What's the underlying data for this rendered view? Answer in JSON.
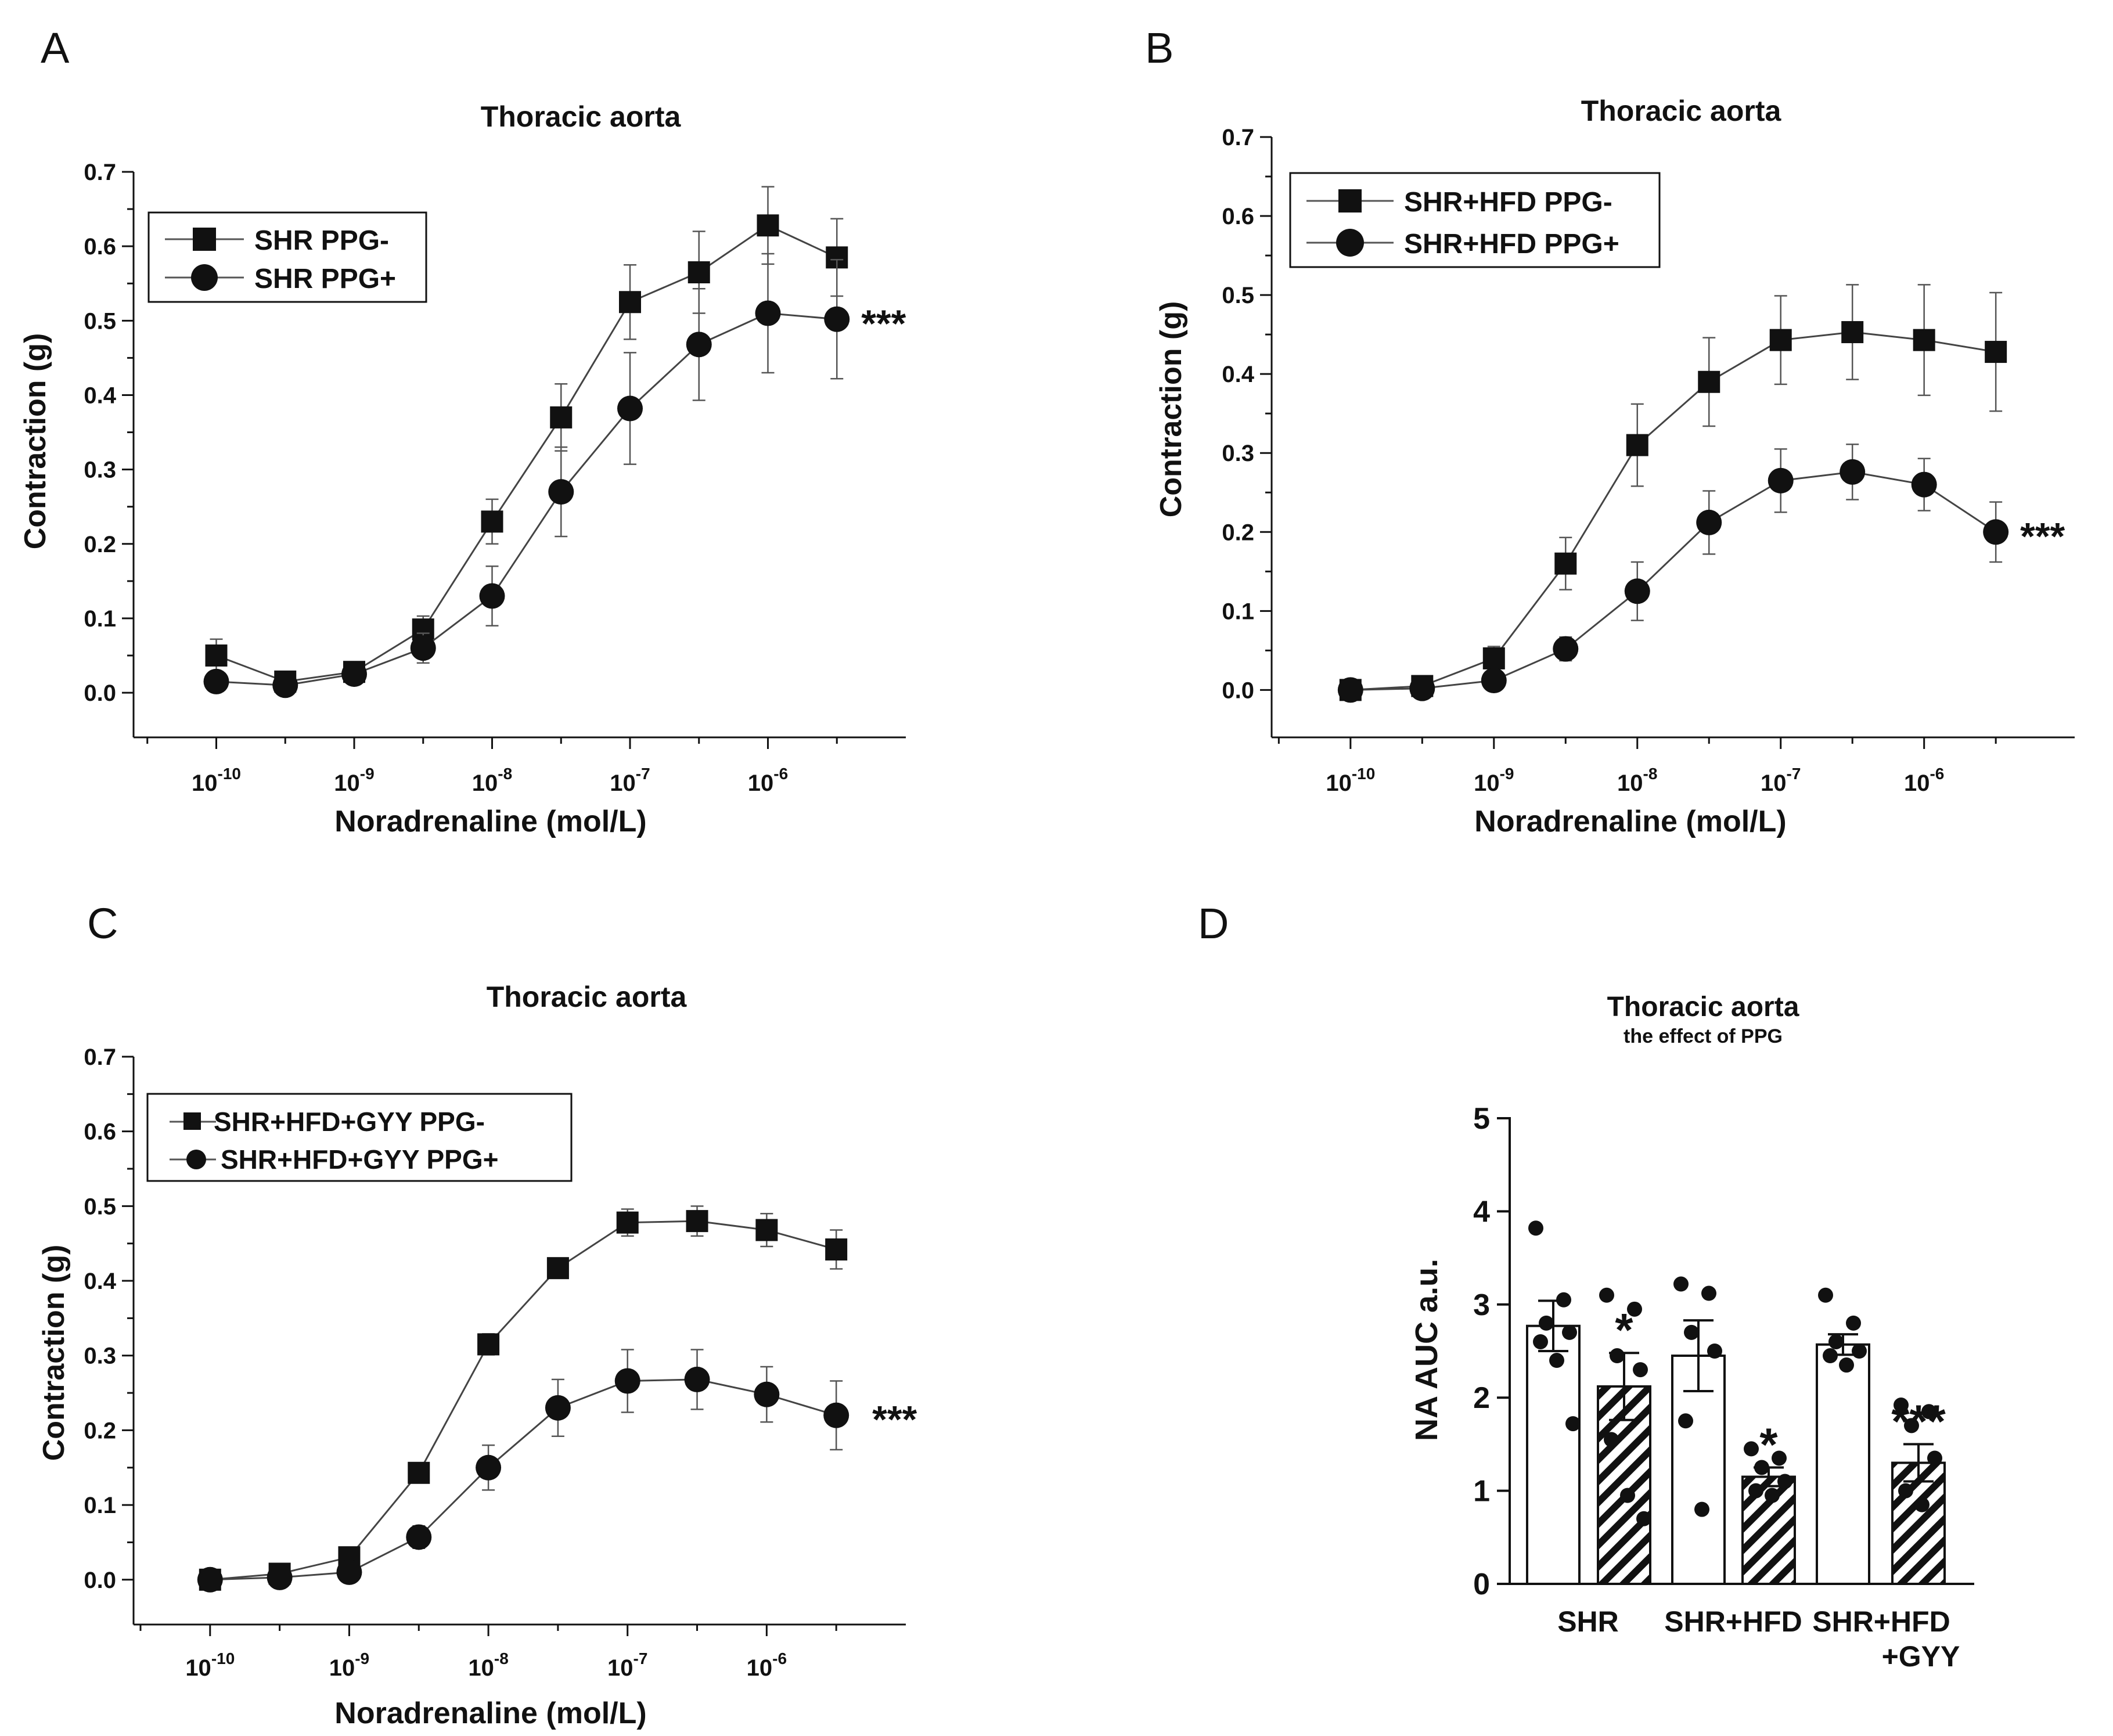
{
  "figure": {
    "panels": [
      {
        "letter": "A",
        "chart_data": {
          "type": "line",
          "title": "Thoracic aorta",
          "xlabel": "Noradrenaline (mol/L)",
          "ylabel": "Contraction (g)",
          "xscale": "log",
          "xlim_log10": [
            -10.6,
            -5.0
          ],
          "ylim": [
            -0.06,
            0.7
          ],
          "yticks": [
            0.0,
            0.1,
            0.2,
            0.3,
            0.4,
            0.5,
            0.6,
            0.7
          ],
          "ytick_labels": [
            "0.0",
            "0.1",
            "0.2",
            "0.3",
            "0.4",
            "0.5",
            "0.6",
            "0.7"
          ],
          "xticks_log10": [
            -10,
            -9,
            -8,
            -7,
            -6
          ],
          "xtick_labels": [
            {
              "base": "10",
              "exp": "-10"
            },
            {
              "base": "10",
              "exp": "-9"
            },
            {
              "base": "10",
              "exp": "-8"
            },
            {
              "base": "10",
              "exp": "-7"
            },
            {
              "base": "10",
              "exp": "-6"
            }
          ],
          "x_log10": [
            -10,
            -9.5,
            -9,
            -8.5,
            -8,
            -7.5,
            -7,
            -6.5,
            -6,
            -5.5
          ],
          "legend_position": "top-left",
          "series": [
            {
              "name": "SHR PPG-",
              "marker": "square",
              "values": [
                0.05,
                0.015,
                0.028,
                0.085,
                0.23,
                0.37,
                0.525,
                0.565,
                0.628,
                0.585
              ],
              "errors": [
                0.022,
                0.01,
                0.01,
                0.018,
                0.03,
                0.045,
                0.05,
                0.055,
                0.052,
                0.052
              ]
            },
            {
              "name": "SHR PPG+",
              "marker": "circle",
              "values": [
                0.015,
                0.01,
                0.025,
                0.06,
                0.13,
                0.27,
                0.382,
                0.468,
                0.51,
                0.502
              ],
              "errors": [
                0.008,
                0.008,
                0.008,
                0.02,
                0.04,
                0.06,
                0.075,
                0.075,
                0.08,
                0.08
              ]
            }
          ],
          "annotations": [
            {
              "text": "***",
              "series": 1,
              "index": 9
            }
          ]
        }
      },
      {
        "letter": "B",
        "chart_data": {
          "type": "line",
          "title": "Thoracic aorta",
          "xlabel": "Noradrenaline (mol/L)",
          "ylabel": "Contraction (g)",
          "xscale": "log",
          "xlim_log10": [
            -10.55,
            -4.95
          ],
          "ylim": [
            -0.06,
            0.7
          ],
          "yticks": [
            0.0,
            0.1,
            0.2,
            0.3,
            0.4,
            0.5,
            0.6,
            0.7
          ],
          "ytick_labels": [
            "0.0",
            "0.1",
            "0.2",
            "0.3",
            "0.4",
            "0.5",
            "0.6",
            "0.7"
          ],
          "xticks_log10": [
            -10,
            -9,
            -8,
            -7,
            -6
          ],
          "xtick_labels": [
            {
              "base": "10",
              "exp": "-10"
            },
            {
              "base": "10",
              "exp": "-9"
            },
            {
              "base": "10",
              "exp": "-8"
            },
            {
              "base": "10",
              "exp": "-7"
            },
            {
              "base": "10",
              "exp": "-6"
            }
          ],
          "x_log10": [
            -10,
            -9.5,
            -9,
            -8.5,
            -8,
            -7.5,
            -7,
            -6.5,
            -6,
            -5.5
          ],
          "legend_position": "top-left",
          "series": [
            {
              "name": "SHR+HFD PPG-",
              "marker": "square",
              "values": [
                0.0,
                0.005,
                0.04,
                0.16,
                0.31,
                0.39,
                0.443,
                0.453,
                0.443,
                0.428
              ],
              "errors": [
                0.008,
                0.008,
                0.015,
                0.033,
                0.052,
                0.056,
                0.056,
                0.06,
                0.07,
                0.075
              ]
            },
            {
              "name": "SHR+HFD PPG+",
              "marker": "circle",
              "values": [
                0.0,
                0.002,
                0.012,
                0.052,
                0.125,
                0.212,
                0.265,
                0.276,
                0.26,
                0.2
              ],
              "errors": [
                0.006,
                0.006,
                0.008,
                0.015,
                0.037,
                0.04,
                0.04,
                0.035,
                0.033,
                0.038
              ]
            }
          ],
          "annotations": [
            {
              "text": "***",
              "series": 1,
              "index": 9
            }
          ]
        }
      },
      {
        "letter": "C",
        "chart_data": {
          "type": "line",
          "title": "Thoracic aorta",
          "xlabel": "Noradrenaline (mol/L)",
          "ylabel": "Contraction (g)",
          "xscale": "log",
          "xlim_log10": [
            -10.55,
            -5.0
          ],
          "ylim": [
            -0.06,
            0.7
          ],
          "yticks": [
            0.0,
            0.1,
            0.2,
            0.3,
            0.4,
            0.5,
            0.6,
            0.7
          ],
          "ytick_labels": [
            "0.0",
            "0.1",
            "0.2",
            "0.3",
            "0.4",
            "0.5",
            "0.6",
            "0.7"
          ],
          "xticks_log10": [
            -10,
            -9,
            -8,
            -7,
            -6
          ],
          "xtick_labels": [
            {
              "base": "10",
              "exp": "-10"
            },
            {
              "base": "10",
              "exp": "-9"
            },
            {
              "base": "10",
              "exp": "-8"
            },
            {
              "base": "10",
              "exp": "-7"
            },
            {
              "base": "10",
              "exp": "-6"
            }
          ],
          "x_log10": [
            -10,
            -9.5,
            -9,
            -8.5,
            -8,
            -7.5,
            -7,
            -6.5,
            -6,
            -5.5
          ],
          "legend_position": "top-left",
          "series": [
            {
              "name": "SHR+HFD+GYY PPG-",
              "marker": "square",
              "values": [
                0.0,
                0.008,
                0.03,
                0.143,
                0.315,
                0.417,
                0.478,
                0.48,
                0.468,
                0.442
              ],
              "errors": [
                0.008,
                0.008,
                0.01,
                0.012,
                0.014,
                0.012,
                0.018,
                0.02,
                0.022,
                0.026
              ]
            },
            {
              "name": "SHR+HFD+GYY PPG+",
              "marker": "circle",
              "values": [
                0.0,
                0.003,
                0.01,
                0.057,
                0.15,
                0.23,
                0.266,
                0.268,
                0.248,
                0.22
              ],
              "errors": [
                0.006,
                0.006,
                0.008,
                0.015,
                0.03,
                0.038,
                0.042,
                0.04,
                0.037,
                0.046
              ]
            }
          ],
          "annotations": [
            {
              "text": "***",
              "series": 1,
              "index": 9
            }
          ]
        }
      },
      {
        "letter": "D",
        "chart_data": {
          "type": "bar",
          "title": "Thoracic aorta",
          "subtitle": "the effect of PPG",
          "ylabel": "NA AUC a.u.",
          "ylim": [
            0,
            5
          ],
          "yticks": [
            0,
            1,
            2,
            3,
            4,
            5
          ],
          "ytick_labels": [
            "0",
            "1",
            "2",
            "3",
            "4",
            "5"
          ],
          "groups": [
            {
              "label_lines": [
                "SHR"
              ]
            },
            {
              "label_lines": [
                "SHR+HFD"
              ]
            },
            {
              "label_lines": [
                "SHR+HFD",
                "+GYY"
              ]
            }
          ],
          "bars": [
            {
              "group": 0,
              "pattern": "open",
              "value": 2.77,
              "error": 0.27,
              "points": [
                3.82,
                3.05,
                2.8,
                2.7,
                2.6,
                2.4,
                1.72
              ],
              "significance": ""
            },
            {
              "group": 0,
              "pattern": "hatched",
              "value": 2.12,
              "error": 0.36,
              "points": [
                3.1,
                2.95,
                2.45,
                2.3,
                1.55,
                0.95,
                0.7
              ],
              "significance": "*"
            },
            {
              "group": 1,
              "pattern": "open",
              "value": 2.45,
              "error": 0.38,
              "points": [
                3.22,
                3.12,
                2.7,
                2.5,
                1.75,
                0.8
              ],
              "significance": ""
            },
            {
              "group": 1,
              "pattern": "hatched",
              "value": 1.15,
              "error": 0.1,
              "points": [
                1.45,
                1.35,
                1.25,
                1.1,
                1.0,
                0.95
              ],
              "significance": "*"
            },
            {
              "group": 2,
              "pattern": "open",
              "value": 2.57,
              "error": 0.11,
              "points": [
                3.1,
                2.8,
                2.6,
                2.5,
                2.45,
                2.35
              ],
              "significance": ""
            },
            {
              "group": 2,
              "pattern": "hatched",
              "value": 1.3,
              "error": 0.2,
              "points": [
                1.92,
                1.85,
                1.7,
                1.35,
                1.0,
                0.85
              ],
              "significance": "***"
            }
          ]
        }
      }
    ]
  }
}
